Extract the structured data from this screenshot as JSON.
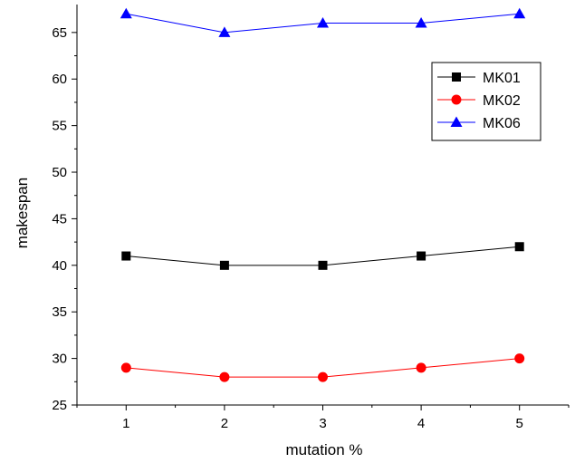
{
  "chart_data": {
    "type": "line",
    "title": "",
    "xlabel": "mutation %",
    "ylabel": "makespan",
    "x": [
      1,
      2,
      3,
      4,
      5
    ],
    "x_ticks": [
      1,
      2,
      3,
      4,
      5
    ],
    "y_ticks": [
      25,
      30,
      35,
      40,
      45,
      50,
      55,
      60,
      65
    ],
    "xlim": [
      0.5,
      5.5
    ],
    "ylim": [
      25,
      68
    ],
    "grid": false,
    "legend_position": "top-right",
    "series": [
      {
        "name": "MK01",
        "values": [
          41,
          40,
          40,
          41,
          42
        ],
        "color": "#000000",
        "marker": "square"
      },
      {
        "name": "MK02",
        "values": [
          29,
          28,
          28,
          29,
          30
        ],
        "color": "#ff0000",
        "marker": "circle"
      },
      {
        "name": "MK06",
        "values": [
          67,
          65,
          66,
          66,
          67
        ],
        "color": "#0000ff",
        "marker": "triangle"
      }
    ]
  }
}
